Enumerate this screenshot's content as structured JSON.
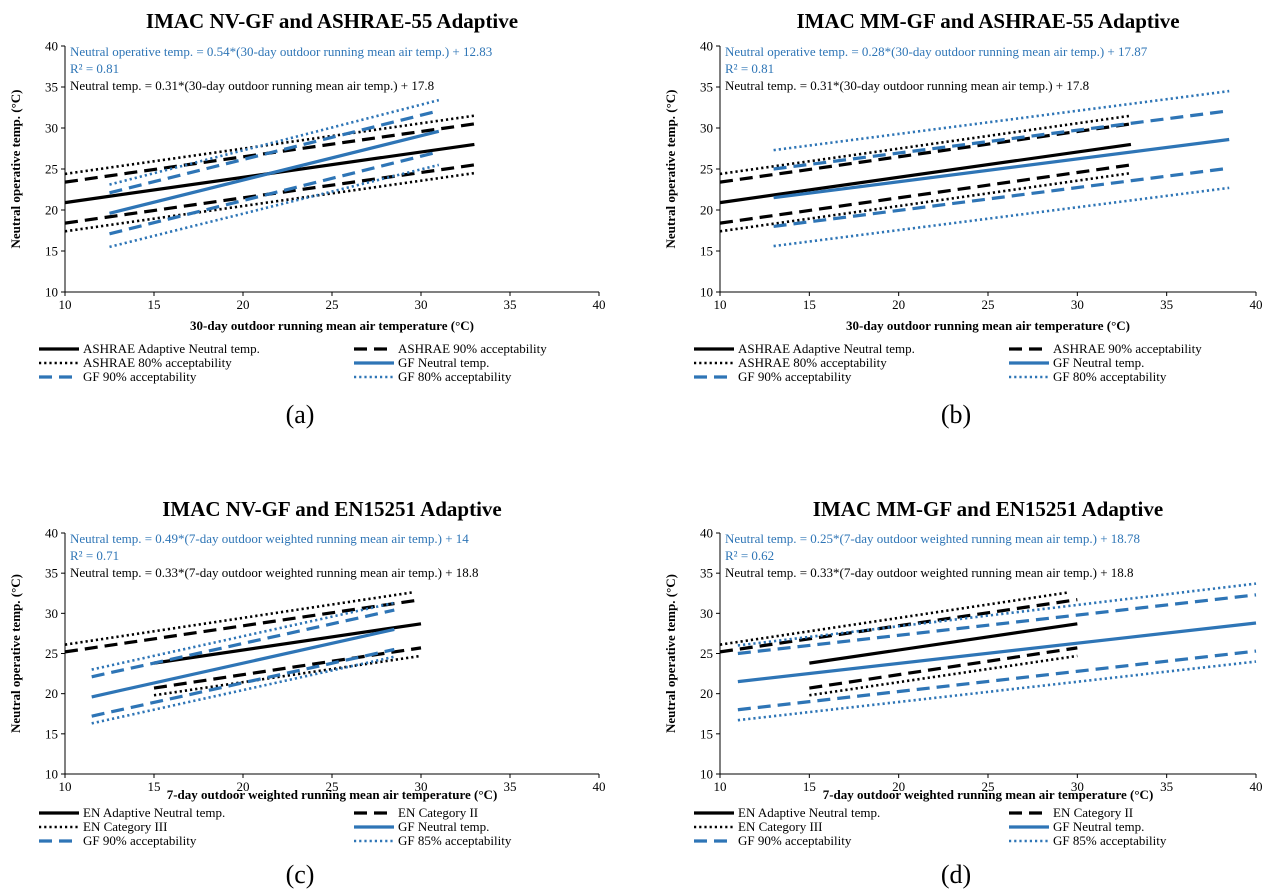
{
  "colors": {
    "ashrae": "#000000",
    "gf": "#2e75b6",
    "axis": "#000000",
    "grid": "#d9d9d9"
  },
  "chart_data": [
    {
      "type": "line",
      "caption": "(a)",
      "title": "IMAC NV-GF and ASHRAE-55 Adaptive",
      "xlabel": "30-day outdoor running mean air temperature (°C)",
      "ylabel": "Neutral operative temp. (°C)",
      "xlim": [
        10,
        40
      ],
      "ylim": [
        10,
        40
      ],
      "xticks": [
        "10",
        "15",
        "20",
        "25",
        "30",
        "35",
        "40"
      ],
      "yticks": [
        "10",
        "15",
        "20",
        "25",
        "30",
        "35",
        "40"
      ],
      "grid": false,
      "legend": "bottom",
      "annotations": [
        {
          "text": "Neutral operative temp. = 0.54*(30-day outdoor running mean air temp.) + 12.83",
          "color": "gf"
        },
        {
          "text": "R² = 0.81",
          "color": "gf"
        },
        {
          "text": "Neutral temp. = 0.31*(30-day outdoor running mean air temp.) + 17.8",
          "color": "ashrae"
        }
      ],
      "series": [
        {
          "name": "ASHRAE Adaptive Neutral temp.",
          "color": "ashrae",
          "style": "solid",
          "x": [
            10,
            33
          ],
          "y": [
            20.9,
            28.0
          ]
        },
        {
          "name": "ASHRAE 90% acceptability",
          "color": "ashrae",
          "style": "dashed",
          "x": [
            10,
            33
          ],
          "y": [
            23.4,
            30.5
          ],
          "y2": [
            18.4,
            25.5
          ]
        },
        {
          "name": "ASHRAE 80% acceptability",
          "color": "ashrae",
          "style": "dotted",
          "x": [
            10,
            33
          ],
          "y": [
            24.4,
            31.5
          ],
          "y2": [
            17.4,
            24.5
          ]
        },
        {
          "name": "GF Neutral temp.",
          "color": "gf",
          "style": "solid",
          "x": [
            12.5,
            31
          ],
          "y": [
            19.6,
            29.6
          ]
        },
        {
          "name": "GF 90% acceptability",
          "color": "gf",
          "style": "dashed",
          "x": [
            12.5,
            31
          ],
          "y": [
            22.1,
            32.1
          ],
          "y2": [
            17.1,
            27.1
          ]
        },
        {
          "name": "GF 80% acceptability",
          "color": "gf",
          "style": "dotted",
          "x": [
            12.5,
            31
          ],
          "y": [
            23.1,
            33.4
          ],
          "y2": [
            15.5,
            25.5
          ]
        }
      ]
    },
    {
      "type": "line",
      "caption": "(b)",
      "title": "IMAC MM-GF and ASHRAE-55 Adaptive",
      "xlabel": "30-day outdoor running mean air temperature (°C)",
      "ylabel": "Neutral operative temp. (°C)",
      "xlim": [
        10,
        40
      ],
      "ylim": [
        10,
        40
      ],
      "xticks": [
        "10",
        "15",
        "20",
        "25",
        "30",
        "35",
        "40"
      ],
      "yticks": [
        "10",
        "15",
        "20",
        "25",
        "30",
        "35",
        "40"
      ],
      "grid": false,
      "legend": "bottom",
      "annotations": [
        {
          "text": "Neutral operative temp. = 0.28*(30-day outdoor running mean air temp.) + 17.87",
          "color": "gf"
        },
        {
          "text": "R² = 0.81",
          "color": "gf"
        },
        {
          "text": "Neutral temp. = 0.31*(30-day outdoor running mean air temp.) + 17.8",
          "color": "ashrae"
        }
      ],
      "series": [
        {
          "name": "ASHRAE Adaptive Neutral temp.",
          "color": "ashrae",
          "style": "solid",
          "x": [
            10,
            33
          ],
          "y": [
            20.9,
            28.0
          ]
        },
        {
          "name": "ASHRAE 90% acceptability",
          "color": "ashrae",
          "style": "dashed",
          "x": [
            10,
            33
          ],
          "y": [
            23.4,
            30.5
          ],
          "y2": [
            18.4,
            25.5
          ]
        },
        {
          "name": "ASHRAE 80% acceptability",
          "color": "ashrae",
          "style": "dotted",
          "x": [
            10,
            33
          ],
          "y": [
            24.4,
            31.5
          ],
          "y2": [
            17.4,
            24.5
          ]
        },
        {
          "name": "GF Neutral temp.",
          "color": "gf",
          "style": "solid",
          "x": [
            13,
            38.5
          ],
          "y": [
            21.5,
            28.6
          ]
        },
        {
          "name": "GF 90% acceptability",
          "color": "gf",
          "style": "dashed",
          "x": [
            13,
            38.5
          ],
          "y": [
            25.0,
            32.1
          ],
          "y2": [
            18.0,
            25.1
          ]
        },
        {
          "name": "GF 80% acceptability",
          "color": "gf",
          "style": "dotted",
          "x": [
            13,
            38.5
          ],
          "y": [
            27.3,
            34.5
          ],
          "y2": [
            15.6,
            22.7
          ]
        }
      ]
    },
    {
      "type": "line",
      "caption": "(c)",
      "title": "IMAC NV-GF and EN15251 Adaptive",
      "xlabel": "7-day outdoor weighted running mean air temperature (°C)",
      "ylabel": "Neutral operative temp. (°C)",
      "xlim": [
        10,
        40
      ],
      "ylim": [
        10,
        40
      ],
      "xticks": [
        "10",
        "15",
        "20",
        "25",
        "30",
        "35",
        "40"
      ],
      "yticks": [
        "10",
        "15",
        "20",
        "25",
        "30",
        "35",
        "40"
      ],
      "grid": false,
      "legend": "bottom",
      "annotations": [
        {
          "text": "Neutral temp. = 0.49*(7-day outdoor weighted running mean air temp.) + 14",
          "color": "gf"
        },
        {
          "text": "R² = 0.71",
          "color": "gf"
        },
        {
          "text": "Neutral temp. = 0.33*(7-day outdoor weighted running mean air temp.) + 18.8",
          "color": "ashrae"
        }
      ],
      "series": [
        {
          "name": "EN Adaptive Neutral temp.",
          "color": "ashrae",
          "style": "solid",
          "x": [
            15,
            30
          ],
          "y": [
            23.8,
            28.7
          ]
        },
        {
          "name": "EN Category II",
          "color": "ashrae",
          "style": "dashed",
          "x": [
            10,
            30
          ],
          "y": [
            25.2,
            31.7
          ],
          "x2": [
            15,
            30
          ],
          "y2": [
            20.7,
            25.7
          ]
        },
        {
          "name": "EN Category III",
          "color": "ashrae",
          "style": "dotted",
          "x": [
            10,
            29.5
          ],
          "y": [
            26.1,
            32.6
          ],
          "x2": [
            15,
            30
          ],
          "y2": [
            19.8,
            24.7
          ]
        },
        {
          "name": "GF Neutral temp.",
          "color": "gf",
          "style": "solid",
          "x": [
            11.5,
            28.5
          ],
          "y": [
            19.6,
            28.0
          ]
        },
        {
          "name": "GF 90% acceptability",
          "color": "gf",
          "style": "dashed",
          "x": [
            11.5,
            28.5
          ],
          "y": [
            22.1,
            30.4
          ],
          "y2": [
            17.2,
            25.5
          ]
        },
        {
          "name": "GF 85% acceptability",
          "color": "gf",
          "style": "dotted",
          "x": [
            11.5,
            28.5
          ],
          "y": [
            23.0,
            31.3
          ],
          "y2": [
            16.3,
            24.6
          ]
        }
      ]
    },
    {
      "type": "line",
      "caption": "(d)",
      "title": "IMAC MM-GF and EN15251 Adaptive",
      "xlabel": "7-day outdoor weighted running mean air temperature (°C)",
      "ylabel": "Neutral operative temp. (°C)",
      "xlim": [
        10,
        40
      ],
      "ylim": [
        10,
        40
      ],
      "xticks": [
        "10",
        "15",
        "20",
        "25",
        "30",
        "35",
        "40"
      ],
      "yticks": [
        "10",
        "15",
        "20",
        "25",
        "30",
        "35",
        "40"
      ],
      "grid": false,
      "legend": "bottom",
      "annotations": [
        {
          "text": "Neutral temp. = 0.25*(7-day outdoor weighted running mean air temp.) + 18.78",
          "color": "gf"
        },
        {
          "text": "R² = 0.62",
          "color": "gf"
        },
        {
          "text": "Neutral temp. = 0.33*(7-day outdoor weighted running mean air temp.) + 18.8",
          "color": "ashrae"
        }
      ],
      "series": [
        {
          "name": "EN Adaptive Neutral temp.",
          "color": "ashrae",
          "style": "solid",
          "x": [
            15,
            30
          ],
          "y": [
            23.8,
            28.7
          ]
        },
        {
          "name": "EN Category II",
          "color": "ashrae",
          "style": "dashed",
          "x": [
            10,
            30
          ],
          "y": [
            25.2,
            31.7
          ],
          "x2": [
            15,
            30
          ],
          "y2": [
            20.7,
            25.7
          ]
        },
        {
          "name": "EN Category III",
          "color": "ashrae",
          "style": "dotted",
          "x": [
            10,
            29.5
          ],
          "y": [
            26.1,
            32.6
          ],
          "x2": [
            15,
            30
          ],
          "y2": [
            19.8,
            24.7
          ]
        },
        {
          "name": "GF Neutral temp.",
          "color": "gf",
          "style": "solid",
          "x": [
            11,
            40
          ],
          "y": [
            21.5,
            28.8
          ]
        },
        {
          "name": "GF 90% acceptability",
          "color": "gf",
          "style": "dashed",
          "x": [
            11,
            40
          ],
          "y": [
            25.0,
            32.3
          ],
          "y2": [
            18.0,
            25.3
          ]
        },
        {
          "name": "GF 85% acceptability",
          "color": "gf",
          "style": "dotted",
          "x": [
            11,
            40
          ],
          "y": [
            26.0,
            33.7
          ],
          "y2": [
            16.7,
            24.0
          ]
        }
      ]
    }
  ]
}
